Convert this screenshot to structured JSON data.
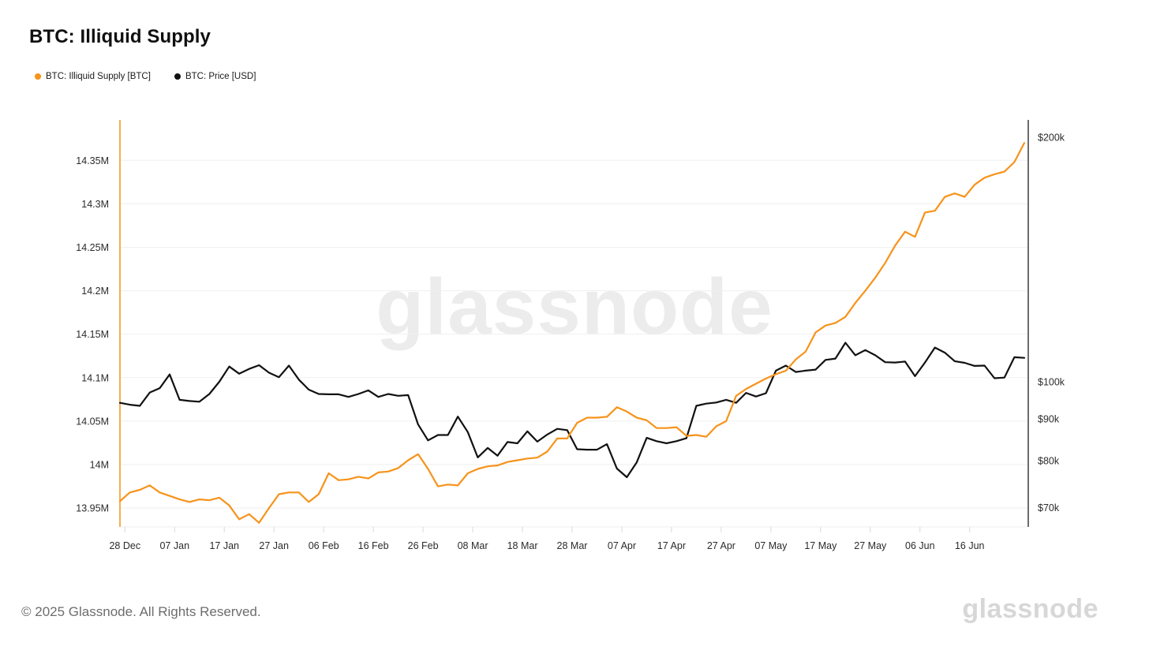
{
  "header": {
    "title": "BTC: Illiquid Supply"
  },
  "legend": [
    {
      "label": "BTC: Illiquid Supply [BTC]",
      "color": "#f7931a"
    },
    {
      "label": "BTC: Price [USD]",
      "color": "#111111"
    }
  ],
  "watermark": "glassnode",
  "footer": {
    "copyright": "© 2025 Glassnode. All Rights Reserved.",
    "logo": "glassnode"
  },
  "chart_data": {
    "type": "line",
    "title": "BTC: Illiquid Supply",
    "grid": "horizontal",
    "x": [
      "Dec 27",
      "Dec 29",
      "Dec 31",
      "Jan 2",
      "Jan 4",
      "Jan 6",
      "Jan 8",
      "Jan 10",
      "Jan 12",
      "Jan 14",
      "Jan 16",
      "Jan 18",
      "Jan 20",
      "Jan 22",
      "Jan 24",
      "Jan 26",
      "Jan 28",
      "Jan 30",
      "Feb 1",
      "Feb 3",
      "Feb 5",
      "Feb 7",
      "Feb 9",
      "Feb 11",
      "Feb 13",
      "Feb 15",
      "Feb 17",
      "Feb 19",
      "Feb 21",
      "Feb 23",
      "Feb 25",
      "Feb 27",
      "Mar 1",
      "Mar 3",
      "Mar 5",
      "Mar 7",
      "Mar 9",
      "Mar 11",
      "Mar 13",
      "Mar 15",
      "Mar 17",
      "Mar 19",
      "Mar 21",
      "Mar 23",
      "Mar 25",
      "Mar 27",
      "Mar 29",
      "Mar 31",
      "Apr 2",
      "Apr 4",
      "Apr 6",
      "Apr 8",
      "Apr 10",
      "Apr 12",
      "Apr 14",
      "Apr 16",
      "Apr 18",
      "Apr 20",
      "Apr 22",
      "Apr 24",
      "Apr 26",
      "Apr 28",
      "Apr 30",
      "May 2",
      "May 4",
      "May 6",
      "May 8",
      "May 10",
      "May 12",
      "May 14",
      "May 16",
      "May 18",
      "May 20",
      "May 22",
      "May 24",
      "May 26",
      "May 28",
      "May 30",
      "Jun 1",
      "Jun 3",
      "Jun 5",
      "Jun 7",
      "Jun 9",
      "Jun 11",
      "Jun 13",
      "Jun 15",
      "Jun 17",
      "Jun 19",
      "Jun 21",
      "Jun 23",
      "Jun 25",
      "Jun 27"
    ],
    "series": [
      {
        "name": "BTC: Illiquid Supply [BTC]",
        "color": "#f7931a",
        "axis": "left",
        "unit": "M BTC",
        "values": [
          13.958,
          13.968,
          13.971,
          13.976,
          13.968,
          13.964,
          13.96,
          13.957,
          13.96,
          13.959,
          13.962,
          13.953,
          13.937,
          13.943,
          13.933,
          13.95,
          13.966,
          13.968,
          13.968,
          13.957,
          13.966,
          13.99,
          13.982,
          13.983,
          13.986,
          13.984,
          13.991,
          13.992,
          13.996,
          14.005,
          14.012,
          13.995,
          13.975,
          13.977,
          13.976,
          13.99,
          13.995,
          13.998,
          13.999,
          14.003,
          14.005,
          14.007,
          14.008,
          14.015,
          14.03,
          14.03,
          14.048,
          14.054,
          14.054,
          14.055,
          14.066,
          14.061,
          14.054,
          14.051,
          14.042,
          14.042,
          14.043,
          14.033,
          14.034,
          14.032,
          14.044,
          14.05,
          14.079,
          14.087,
          14.093,
          14.099,
          14.104,
          14.108,
          14.121,
          14.13,
          14.152,
          14.16,
          14.163,
          14.17,
          14.186,
          14.2,
          14.215,
          14.232,
          14.252,
          14.268,
          14.262,
          14.29,
          14.292,
          14.308,
          14.312,
          14.308,
          14.322,
          14.33,
          14.334,
          14.337,
          14.348,
          14.37
        ]
      },
      {
        "name": "BTC: Price [USD]",
        "color": "#111111",
        "axis": "right",
        "unit": "USD thousands",
        "values": [
          94.2,
          93.7,
          93.4,
          97.0,
          98.2,
          102.1,
          95.0,
          94.7,
          94.5,
          96.6,
          100.0,
          104.4,
          102.3,
          103.7,
          104.8,
          102.6,
          101.3,
          104.7,
          100.6,
          97.8,
          96.6,
          96.5,
          96.5,
          95.8,
          96.6,
          97.6,
          95.8,
          96.6,
          96.1,
          96.3,
          88.6,
          84.7,
          86.0,
          86.0,
          90.6,
          86.7,
          80.7,
          82.9,
          81.1,
          84.3,
          84.0,
          86.9,
          84.4,
          86.1,
          87.5,
          87.2,
          82.6,
          82.5,
          82.5,
          83.8,
          78.2,
          76.3,
          79.6,
          85.3,
          84.5,
          84.0,
          84.5,
          85.2,
          93.4,
          94.0,
          94.3,
          95.0,
          94.2,
          96.9,
          95.9,
          96.8,
          103.2,
          104.7,
          102.8,
          103.2,
          103.5,
          106.4,
          106.8,
          111.7,
          107.8,
          109.4,
          107.8,
          105.7,
          105.6,
          105.9,
          101.6,
          105.6,
          110.2,
          108.6,
          106.0,
          105.5,
          104.6,
          104.7,
          101.0,
          101.2,
          107.2,
          107.0
        ]
      }
    ],
    "left_axis": {
      "scale": "linear",
      "ticks": [
        "13.95M",
        "14M",
        "14.05M",
        "14.1M",
        "14.15M",
        "14.2M",
        "14.25M",
        "14.3M",
        "14.35M"
      ],
      "tick_values": [
        13.95,
        14.0,
        14.05,
        14.1,
        14.15,
        14.2,
        14.25,
        14.3,
        14.35
      ],
      "ylim": [
        13.92,
        14.39
      ]
    },
    "right_axis": {
      "scale": "log",
      "ticks": [
        "$70k",
        "$80k",
        "$90k",
        "$100k",
        "$200k"
      ],
      "tick_values": [
        70,
        80,
        90,
        100,
        200
      ],
      "ylim": [
        68,
        210
      ]
    },
    "x_ticks": [
      "28 Dec",
      "07 Jan",
      "17 Jan",
      "27 Jan",
      "06 Feb",
      "16 Feb",
      "26 Feb",
      "08 Mar",
      "18 Mar",
      "28 Mar",
      "07 Apr",
      "17 Apr",
      "27 Apr",
      "07 May",
      "17 May",
      "27 May",
      "06 Jun",
      "16 Jun"
    ],
    "legend_position": "top-left"
  }
}
